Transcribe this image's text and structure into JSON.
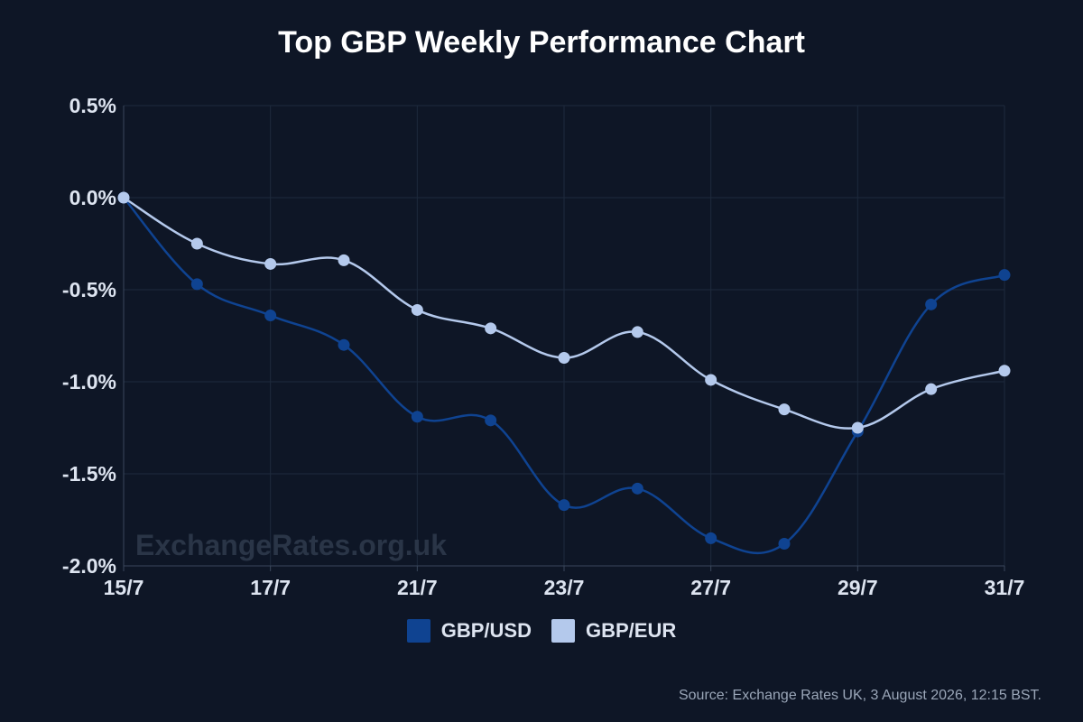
{
  "title": "Top GBP Weekly Performance Chart",
  "watermark": "ExchangeRates.org.uk",
  "source": "Source: Exchange Rates UK, 3 August 2026, 12:15 BST.",
  "chart_data": {
    "type": "line",
    "title": "Top GBP Weekly Performance Chart",
    "xlabel": "",
    "ylabel": "",
    "x": [
      "15/7",
      "16/7",
      "17/7",
      "18/7",
      "21/7",
      "22/7",
      "23/7",
      "24/7",
      "27/7",
      "28/7",
      "29/7",
      "30/7",
      "31/7"
    ],
    "x_tick_labels": [
      "15/7",
      "17/7",
      "21/7",
      "23/7",
      "27/7",
      "29/7",
      "31/7"
    ],
    "y_tick_labels": [
      "0.5%",
      "0.0%",
      "-0.5%",
      "-1.0%",
      "-1.5%",
      "-2.0%"
    ],
    "ylim": [
      -2.0,
      0.5
    ],
    "y_unit": "%",
    "grid": true,
    "legend_position": "bottom",
    "series": [
      {
        "name": "GBP/USD",
        "color": "#0f4391",
        "values": [
          0.0,
          -0.47,
          -0.64,
          -0.8,
          -1.19,
          -1.21,
          -1.67,
          -1.58,
          -1.85,
          -1.88,
          -1.27,
          -0.58,
          -0.42
        ]
      },
      {
        "name": "GBP/EUR",
        "color": "#b4c9ec",
        "values": [
          0.0,
          -0.25,
          -0.36,
          -0.34,
          -0.61,
          -0.71,
          -0.87,
          -0.73,
          -0.99,
          -1.15,
          -1.25,
          -1.04,
          -0.94
        ]
      }
    ]
  }
}
